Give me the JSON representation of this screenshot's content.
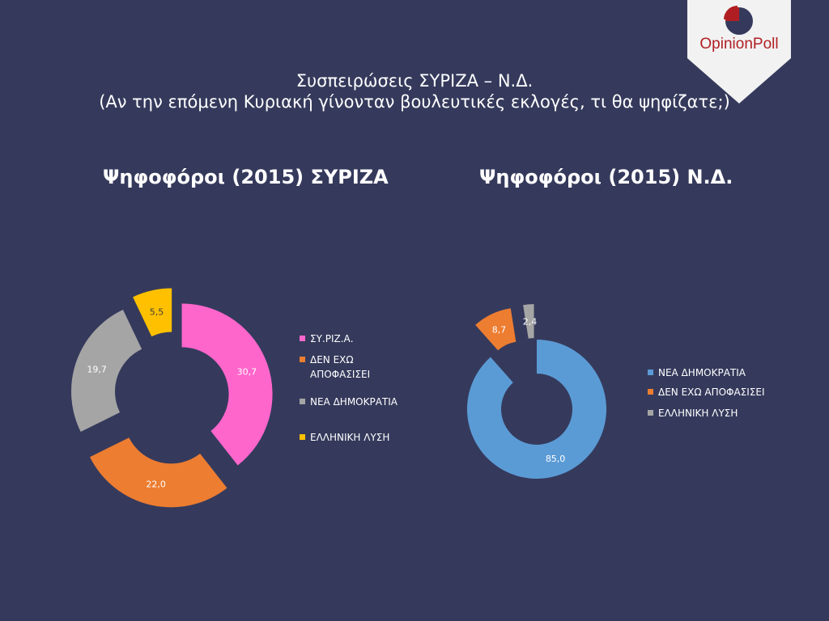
{
  "logo": {
    "text": "OpinionPoll",
    "icon": "pie-logo-icon",
    "colors": {
      "red": "#b01e23",
      "navy": "#353a5c",
      "bg": "#f2f2f2"
    }
  },
  "slide": {
    "title_line1": "Συσπειρώσεις ΣΥΡΙΖΑ – Ν.Δ.",
    "title_line2": "(Αν την επόμενη Κυριακή γίνονταν βουλευτικές εκλογές, τι θα ψηφίζατε;)"
  },
  "chart_data": [
    {
      "type": "pie",
      "variant": "doughnut",
      "title": "Ψηφοφόροι (2015) ΣΥΡΙΖΑ",
      "categories": [
        "ΣΥ.ΡΙΖ.Α.",
        "ΔΕΝ ΕΧΩ ΑΠΟΦΑΣΙΣΕΙ",
        "ΝΕΑ ΔΗΜΟΚΡΑΤΙΑ",
        "ΕΛΛΗΝΙΚΗ ΛΥΣΗ"
      ],
      "values": [
        30.7,
        22.0,
        19.7,
        5.5
      ],
      "labels": [
        "30,7",
        "22,0",
        "19,7",
        "5,5"
      ],
      "colors": [
        "#ff66cc",
        "#ed7d31",
        "#a5a5a5",
        "#ffc000"
      ],
      "legend": "right"
    },
    {
      "type": "pie",
      "variant": "doughnut",
      "title": "Ψηφοφόροι (2015) Ν.Δ.",
      "categories": [
        "ΝΕΑ ΔΗΜΟΚΡΑΤΙΑ",
        "ΔΕΝ ΕΧΩ ΑΠΟΦΑΣΙΣΕΙ",
        "ΕΛΛΗΝΙΚΗ ΛΥΣΗ"
      ],
      "values": [
        85.0,
        8.7,
        2.4
      ],
      "labels": [
        "85,0",
        "8,7",
        "2,4"
      ],
      "colors": [
        "#5b9bd5",
        "#ed7d31",
        "#a5a5a5"
      ],
      "legend": "right"
    }
  ]
}
